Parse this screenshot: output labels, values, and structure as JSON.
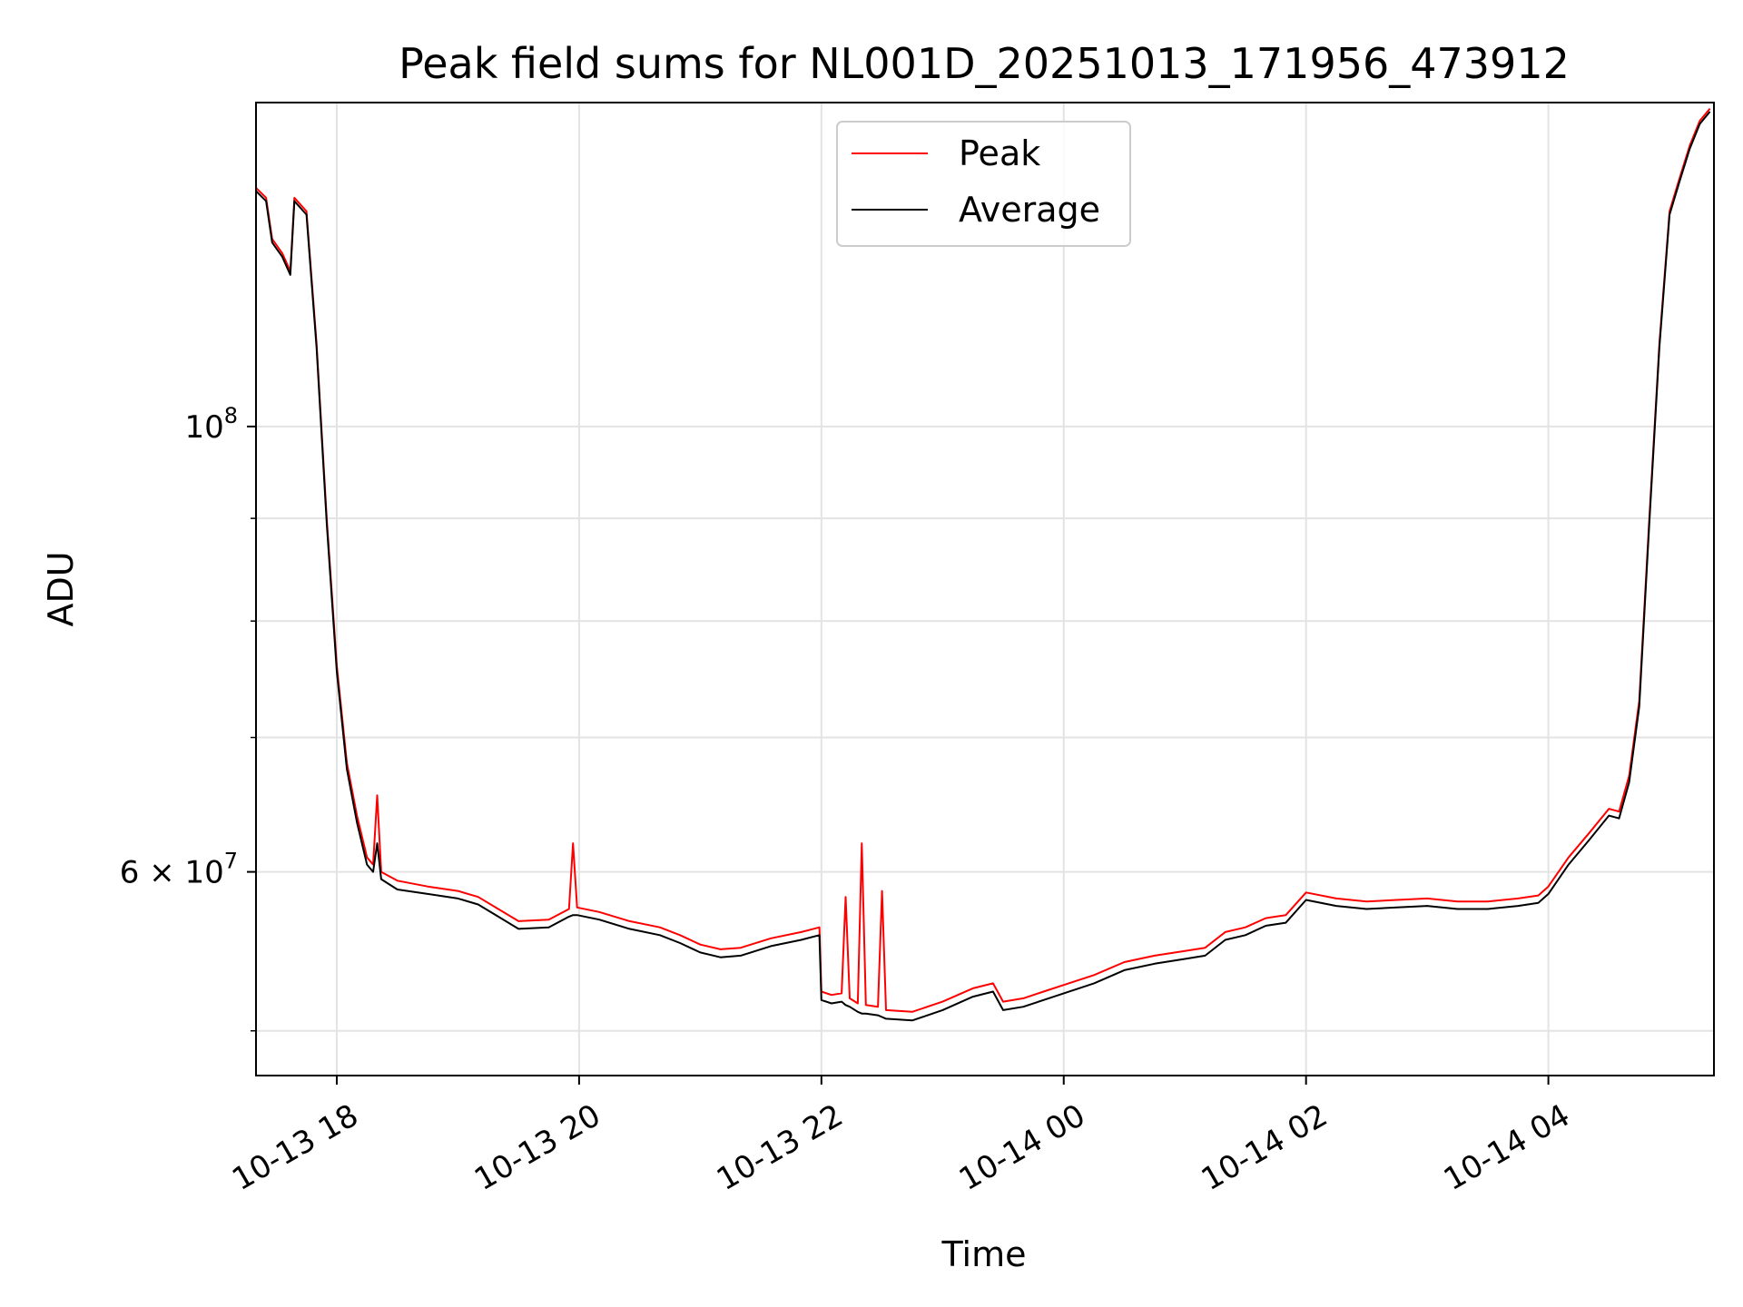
{
  "chart_data": {
    "type": "line",
    "title": "Peak field sums for NL001D_20251013_171956_473912",
    "xlabel": "Time",
    "ylabel": "ADU",
    "y_scale": "log",
    "grid": true,
    "legend_position": "top-center",
    "xlim": [
      "2025-10-13 17:20",
      "2025-10-14 05:22"
    ],
    "ylim": [
      47500000,
      145000000
    ],
    "x_ticks": [
      {
        "value": "2025-10-13 18:00",
        "label": "10-13 18"
      },
      {
        "value": "2025-10-13 20:00",
        "label": "10-13 20"
      },
      {
        "value": "2025-10-13 22:00",
        "label": "10-13 22"
      },
      {
        "value": "2025-10-14 00:00",
        "label": "10-14 00"
      },
      {
        "value": "2025-10-14 02:00",
        "label": "10-14 02"
      },
      {
        "value": "2025-10-14 04:00",
        "label": "10-14 04"
      }
    ],
    "y_ticks": [
      {
        "value": 100000000,
        "base": "10",
        "exponent": "8"
      },
      {
        "value": 60000000,
        "base": "6 × 10",
        "exponent": "7"
      }
    ],
    "y_minor_ticks": [
      50000000,
      70000000,
      80000000,
      90000000
    ],
    "series": [
      {
        "name": "Peak",
        "color": "#ff0000",
        "points": [
          [
            "2025-10-13 17:20",
            131500000
          ],
          [
            "2025-10-13 17:25",
            130000000
          ],
          [
            "2025-10-13 17:28",
            124000000
          ],
          [
            "2025-10-13 17:33",
            122000000
          ],
          [
            "2025-10-13 17:37",
            119500000
          ],
          [
            "2025-10-13 17:39",
            130000000
          ],
          [
            "2025-10-13 17:45",
            128000000
          ],
          [
            "2025-10-13 17:50",
            110000000
          ],
          [
            "2025-10-13 17:55",
            90000000
          ],
          [
            "2025-10-13 18:00",
            76000000
          ],
          [
            "2025-10-13 18:05",
            68000000
          ],
          [
            "2025-10-13 18:10",
            64000000
          ],
          [
            "2025-10-13 18:15",
            61000000
          ],
          [
            "2025-10-13 18:18",
            60500000
          ],
          [
            "2025-10-13 18:20",
            65500000
          ],
          [
            "2025-10-13 18:22",
            60000000
          ],
          [
            "2025-10-13 18:30",
            59400000
          ],
          [
            "2025-10-13 18:45",
            59000000
          ],
          [
            "2025-10-13 19:00",
            58700000
          ],
          [
            "2025-10-13 19:10",
            58300000
          ],
          [
            "2025-10-13 19:20",
            57500000
          ],
          [
            "2025-10-13 19:30",
            56700000
          ],
          [
            "2025-10-13 19:45",
            56800000
          ],
          [
            "2025-10-13 19:55",
            57500000
          ],
          [
            "2025-10-13 19:57",
            62000000
          ],
          [
            "2025-10-13 19:59",
            57600000
          ],
          [
            "2025-10-13 20:10",
            57300000
          ],
          [
            "2025-10-13 20:25",
            56700000
          ],
          [
            "2025-10-13 20:40",
            56300000
          ],
          [
            "2025-10-13 20:50",
            55800000
          ],
          [
            "2025-10-13 21:00",
            55200000
          ],
          [
            "2025-10-13 21:10",
            54900000
          ],
          [
            "2025-10-13 21:20",
            55000000
          ],
          [
            "2025-10-13 21:35",
            55600000
          ],
          [
            "2025-10-13 21:50",
            56000000
          ],
          [
            "2025-10-13 21:59",
            56300000
          ],
          [
            "2025-10-13 22:00",
            52300000
          ],
          [
            "2025-10-13 22:05",
            52100000
          ],
          [
            "2025-10-13 22:10",
            52200000
          ],
          [
            "2025-10-13 22:12",
            58300000
          ],
          [
            "2025-10-13 22:14",
            51900000
          ],
          [
            "2025-10-13 22:18",
            51600000
          ],
          [
            "2025-10-13 22:20",
            62000000
          ],
          [
            "2025-10-13 22:22",
            51500000
          ],
          [
            "2025-10-13 22:28",
            51400000
          ],
          [
            "2025-10-13 22:30",
            58700000
          ],
          [
            "2025-10-13 22:32",
            51200000
          ],
          [
            "2025-10-13 22:45",
            51100000
          ],
          [
            "2025-10-13 23:00",
            51700000
          ],
          [
            "2025-10-13 23:15",
            52500000
          ],
          [
            "2025-10-13 23:25",
            52800000
          ],
          [
            "2025-10-13 23:30",
            51700000
          ],
          [
            "2025-10-13 23:40",
            51900000
          ],
          [
            "2025-10-13 23:50",
            52300000
          ],
          [
            "2025-10-14 00:00",
            52700000
          ],
          [
            "2025-10-14 00:15",
            53300000
          ],
          [
            "2025-10-14 00:30",
            54100000
          ],
          [
            "2025-10-14 00:45",
            54500000
          ],
          [
            "2025-10-14 01:00",
            54800000
          ],
          [
            "2025-10-14 01:10",
            55000000
          ],
          [
            "2025-10-14 01:20",
            56000000
          ],
          [
            "2025-10-14 01:30",
            56300000
          ],
          [
            "2025-10-14 01:40",
            56900000
          ],
          [
            "2025-10-14 01:50",
            57100000
          ],
          [
            "2025-10-14 02:00",
            58600000
          ],
          [
            "2025-10-14 02:15",
            58200000
          ],
          [
            "2025-10-14 02:30",
            58000000
          ],
          [
            "2025-10-14 02:45",
            58100000
          ],
          [
            "2025-10-14 03:00",
            58200000
          ],
          [
            "2025-10-14 03:15",
            58000000
          ],
          [
            "2025-10-14 03:30",
            58000000
          ],
          [
            "2025-10-14 03:45",
            58200000
          ],
          [
            "2025-10-14 03:55",
            58400000
          ],
          [
            "2025-10-14 04:00",
            59000000
          ],
          [
            "2025-10-14 04:10",
            61000000
          ],
          [
            "2025-10-14 04:20",
            62700000
          ],
          [
            "2025-10-14 04:30",
            64500000
          ],
          [
            "2025-10-14 04:35",
            64300000
          ],
          [
            "2025-10-14 04:40",
            67000000
          ],
          [
            "2025-10-14 04:45",
            73000000
          ],
          [
            "2025-10-14 04:50",
            90000000
          ],
          [
            "2025-10-14 04:55",
            110000000
          ],
          [
            "2025-10-14 05:00",
            128000000
          ],
          [
            "2025-10-14 05:05",
            133000000
          ],
          [
            "2025-10-14 05:10",
            138000000
          ],
          [
            "2025-10-14 05:15",
            142000000
          ],
          [
            "2025-10-14 05:20",
            144000000
          ]
        ]
      },
      {
        "name": "Average",
        "color": "#000000",
        "points": [
          [
            "2025-10-13 17:20",
            131000000
          ],
          [
            "2025-10-13 17:25",
            129500000
          ],
          [
            "2025-10-13 17:28",
            123500000
          ],
          [
            "2025-10-13 17:33",
            121500000
          ],
          [
            "2025-10-13 17:37",
            119000000
          ],
          [
            "2025-10-13 17:39",
            129500000
          ],
          [
            "2025-10-13 17:45",
            127500000
          ],
          [
            "2025-10-13 17:50",
            109500000
          ],
          [
            "2025-10-13 17:55",
            89500000
          ],
          [
            "2025-10-13 18:00",
            75500000
          ],
          [
            "2025-10-13 18:05",
            67500000
          ],
          [
            "2025-10-13 18:10",
            63500000
          ],
          [
            "2025-10-13 18:15",
            60500000
          ],
          [
            "2025-10-13 18:18",
            60000000
          ],
          [
            "2025-10-13 18:20",
            62000000
          ],
          [
            "2025-10-13 18:22",
            59500000
          ],
          [
            "2025-10-13 18:30",
            58800000
          ],
          [
            "2025-10-13 18:45",
            58500000
          ],
          [
            "2025-10-13 19:00",
            58200000
          ],
          [
            "2025-10-13 19:10",
            57800000
          ],
          [
            "2025-10-13 19:20",
            57000000
          ],
          [
            "2025-10-13 19:30",
            56200000
          ],
          [
            "2025-10-13 19:45",
            56300000
          ],
          [
            "2025-10-13 19:55",
            57000000
          ],
          [
            "2025-10-13 19:57",
            57100000
          ],
          [
            "2025-10-13 19:59",
            57100000
          ],
          [
            "2025-10-13 20:10",
            56800000
          ],
          [
            "2025-10-13 20:25",
            56200000
          ],
          [
            "2025-10-13 20:40",
            55800000
          ],
          [
            "2025-10-13 20:50",
            55300000
          ],
          [
            "2025-10-13 21:00",
            54700000
          ],
          [
            "2025-10-13 21:10",
            54400000
          ],
          [
            "2025-10-13 21:20",
            54500000
          ],
          [
            "2025-10-13 21:35",
            55100000
          ],
          [
            "2025-10-13 21:50",
            55500000
          ],
          [
            "2025-10-13 21:59",
            55800000
          ],
          [
            "2025-10-13 22:00",
            51800000
          ],
          [
            "2025-10-13 22:05",
            51600000
          ],
          [
            "2025-10-13 22:10",
            51700000
          ],
          [
            "2025-10-13 22:12",
            51500000
          ],
          [
            "2025-10-13 22:14",
            51400000
          ],
          [
            "2025-10-13 22:18",
            51100000
          ],
          [
            "2025-10-13 22:20",
            51000000
          ],
          [
            "2025-10-13 22:22",
            51000000
          ],
          [
            "2025-10-13 22:28",
            50900000
          ],
          [
            "2025-10-13 22:30",
            50800000
          ],
          [
            "2025-10-13 22:32",
            50700000
          ],
          [
            "2025-10-13 22:45",
            50600000
          ],
          [
            "2025-10-13 23:00",
            51200000
          ],
          [
            "2025-10-13 23:15",
            52000000
          ],
          [
            "2025-10-13 23:25",
            52300000
          ],
          [
            "2025-10-13 23:30",
            51200000
          ],
          [
            "2025-10-13 23:40",
            51400000
          ],
          [
            "2025-10-13 23:50",
            51800000
          ],
          [
            "2025-10-14 00:00",
            52200000
          ],
          [
            "2025-10-14 00:15",
            52800000
          ],
          [
            "2025-10-14 00:30",
            53600000
          ],
          [
            "2025-10-14 00:45",
            54000000
          ],
          [
            "2025-10-14 01:00",
            54300000
          ],
          [
            "2025-10-14 01:10",
            54500000
          ],
          [
            "2025-10-14 01:20",
            55500000
          ],
          [
            "2025-10-14 01:30",
            55800000
          ],
          [
            "2025-10-14 01:40",
            56400000
          ],
          [
            "2025-10-14 01:50",
            56600000
          ],
          [
            "2025-10-14 02:00",
            58100000
          ],
          [
            "2025-10-14 02:15",
            57700000
          ],
          [
            "2025-10-14 02:30",
            57500000
          ],
          [
            "2025-10-14 02:45",
            57600000
          ],
          [
            "2025-10-14 03:00",
            57700000
          ],
          [
            "2025-10-14 03:15",
            57500000
          ],
          [
            "2025-10-14 03:30",
            57500000
          ],
          [
            "2025-10-14 03:45",
            57700000
          ],
          [
            "2025-10-14 03:55",
            57900000
          ],
          [
            "2025-10-14 04:00",
            58500000
          ],
          [
            "2025-10-14 04:10",
            60500000
          ],
          [
            "2025-10-14 04:20",
            62200000
          ],
          [
            "2025-10-14 04:30",
            64000000
          ],
          [
            "2025-10-14 04:35",
            63800000
          ],
          [
            "2025-10-14 04:40",
            66500000
          ],
          [
            "2025-10-14 04:45",
            72500000
          ],
          [
            "2025-10-14 04:50",
            89500000
          ],
          [
            "2025-10-14 04:55",
            109500000
          ],
          [
            "2025-10-14 05:00",
            127500000
          ],
          [
            "2025-10-14 05:05",
            132500000
          ],
          [
            "2025-10-14 05:10",
            137500000
          ],
          [
            "2025-10-14 05:15",
            141500000
          ],
          [
            "2025-10-14 05:20",
            143500000
          ]
        ]
      }
    ]
  }
}
